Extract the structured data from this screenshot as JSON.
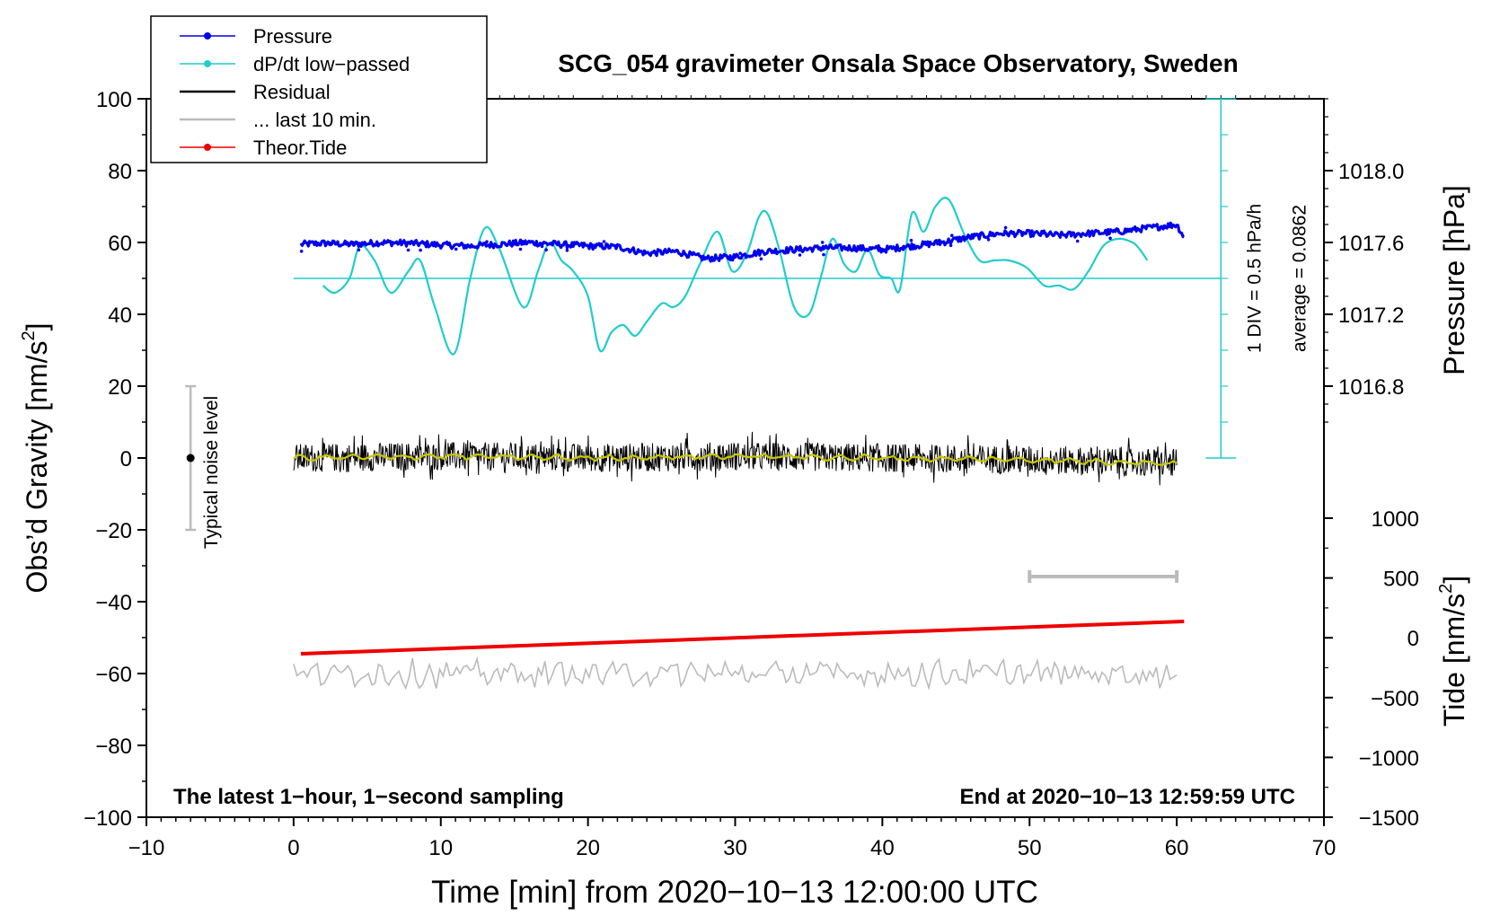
{
  "chart_data": {
    "type": "line",
    "title": "SCG_054 gravimeter Onsala Space Observatory, Sweden",
    "xlabel": "Time [min] from 2020−10−13 12:00:00 UTC",
    "ylabel_main": "Obs’d Gravity [nm/s",
    "ylabel_main_sup": "2",
    "ylabel_main_close": "]",
    "ylabel_pressure": "Pressure [hPa]",
    "ylabel_tide": "Tide [nm/s",
    "ylabel_tide_sup": "2",
    "ylabel_tide_close": "]",
    "xlim": [
      -10,
      70
    ],
    "ylim": [
      -100,
      100
    ],
    "x_ticks": [
      "−10",
      "0",
      "10",
      "20",
      "30",
      "40",
      "50",
      "60",
      "70"
    ],
    "y_ticks": [
      "100",
      "80",
      "60",
      "40",
      "20",
      "0",
      "−20",
      "−40",
      "−60",
      "−80",
      "−100"
    ],
    "pressure_ticks": [
      "1018.0",
      "1017.6",
      "1017.2",
      "1016.8"
    ],
    "pressure_range": [
      1016.8,
      1018.0
    ],
    "tide_ticks": [
      "1000",
      "500",
      "0",
      "−500",
      "−1000",
      "−1500"
    ],
    "tide_range": [
      -1500,
      1000
    ],
    "legend": [
      {
        "label": "Pressure",
        "color": "#0000ee",
        "marker": true
      },
      {
        "label": "dP/dt low−passed",
        "color": "#22cccc",
        "marker": true
      },
      {
        "label": "Residual",
        "color": "#000000",
        "marker": false
      },
      {
        "label": "... last 10 min.",
        "color": "#bbbbbb",
        "marker": false
      },
      {
        "label": "Theor.Tide",
        "color": "#ee0000",
        "marker": true
      }
    ],
    "series": [
      {
        "name": "Pressure",
        "color": "#0000ee",
        "units": "gravity-axis equivalent",
        "x": [
          0.5,
          2,
          4,
          6,
          8,
          10,
          12,
          14,
          16,
          18,
          20,
          22,
          24,
          26,
          28,
          30,
          32,
          34,
          36,
          38,
          40,
          42,
          44,
          46,
          48,
          50,
          52,
          54,
          56,
          58,
          60,
          60.5
        ],
        "values": [
          59.5,
          59.8,
          59.5,
          60.0,
          59.8,
          59.3,
          59.0,
          59.5,
          60.0,
          59.5,
          59.0,
          58.8,
          57.0,
          57.5,
          55.5,
          56.0,
          57.5,
          58.0,
          58.5,
          58.5,
          58.0,
          59.0,
          60.0,
          61.5,
          62.5,
          62.5,
          62.0,
          62.5,
          63.0,
          64.0,
          65.0,
          61.5
        ]
      },
      {
        "name": "dP/dt low−passed",
        "color": "#22cccc",
        "units": "gravity-axis equivalent",
        "x": [
          2,
          2.8,
          3.8,
          4.5,
          5.5,
          6.6,
          7.8,
          8.6,
          9.6,
          10.9,
          12.0,
          13.0,
          14.0,
          15.6,
          16.6,
          17.4,
          18.2,
          19.0,
          20.0,
          20.8,
          21.6,
          22.4,
          23.2,
          24.0,
          25.0,
          25.8,
          26.6,
          27.6,
          28.8,
          29.8,
          30.8,
          31.6,
          32.2,
          33.0,
          34.0,
          35.0,
          35.8,
          36.6,
          37.4,
          38.2,
          39.0,
          39.8,
          40.6,
          41.2,
          42.0,
          42.8,
          43.6,
          44.5,
          45.6,
          46.6,
          47.6,
          48.6,
          49.8,
          51.0,
          52.0,
          53.0,
          54.0,
          55.0,
          56.0,
          57.0,
          57.5,
          58.0
        ],
        "values": [
          48,
          46,
          50,
          59,
          55,
          46,
          52,
          55,
          42,
          29,
          50,
          64,
          58,
          42,
          52,
          60,
          55,
          52,
          45,
          30,
          35,
          37,
          34,
          38,
          43,
          42,
          45,
          54,
          63,
          52,
          57,
          67,
          68,
          58,
          42,
          40,
          50,
          61,
          54,
          52,
          58,
          51,
          50,
          47,
          68,
          63,
          70,
          72,
          62,
          55,
          55,
          55,
          53,
          48,
          48,
          47,
          52,
          59,
          61,
          60,
          58,
          55
        ]
      },
      {
        "name": "Residual",
        "color": "#000000",
        "units": "nm/s2",
        "x": [
          0,
          10,
          20,
          30,
          40,
          50,
          60
        ],
        "values": [
          0,
          0.5,
          0,
          0.5,
          0,
          -0.5,
          -1.5
        ],
        "noise_amplitude": 4
      },
      {
        "name": "... last 10 min.",
        "color": "#bbbbbb",
        "units": "gravity-axis equivalent",
        "x": [
          0,
          60
        ],
        "values": [
          -60,
          -60
        ],
        "noise_amplitude": 4
      },
      {
        "name": "Theor.Tide",
        "color": "#ee0000",
        "units": "nm/s2",
        "x": [
          0.5,
          60.5
        ],
        "values": [
          -54.5,
          -45.5
        ]
      }
    ],
    "average_line": {
      "value": 50,
      "x_end": 63,
      "color": "#22cccc"
    },
    "scale_bar": {
      "x": 63,
      "from": 0,
      "to": 100,
      "color": "#22cccc"
    },
    "scale_text": "1 DIV = 0.5 hPa/h",
    "average_text": "average = 0.0862",
    "noise_bar": {
      "x": -7,
      "center": 0,
      "from": -20,
      "to": 20,
      "label": "Typical noise level"
    },
    "ten_min_bar": {
      "x_from": 50,
      "x_to": 60,
      "y": -33
    },
    "bottom_left_text": "The latest 1−hour, 1−second sampling",
    "bottom_right_text": "End at 2020−10−13 12:59:59 UTC"
  }
}
